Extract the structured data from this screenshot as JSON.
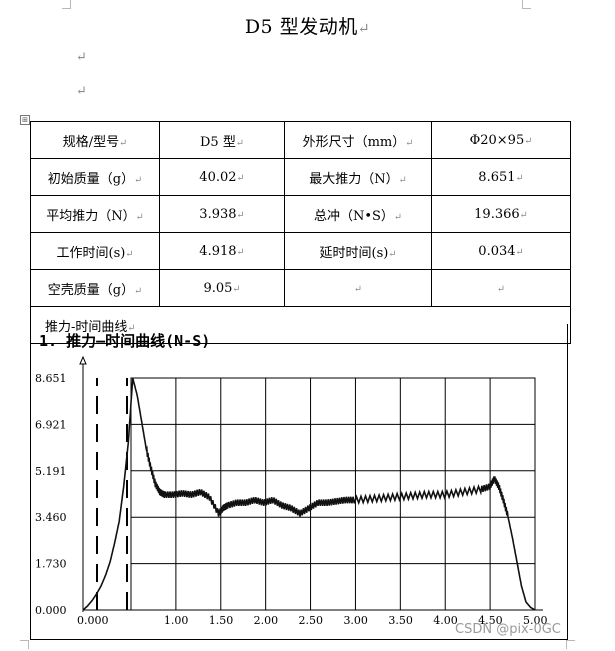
{
  "page_title": "D5 型发动机",
  "para_mark": "↵",
  "table_handle": "⊞",
  "spec_rows": [
    [
      "规格/型号",
      "D5 型",
      "外形尺寸（mm）",
      "Φ20×95"
    ],
    [
      "初始质量（g）",
      "40.02",
      "最大推力（N）",
      "8.651"
    ],
    [
      "平均推力（N）",
      "3.938",
      "总冲（N•S）",
      "19.366"
    ],
    [
      "工作时间(s)",
      "4.918",
      "延时时间(s)",
      "0.034"
    ],
    [
      "空壳质量（g）",
      "9.05",
      "",
      ""
    ]
  ],
  "curve_heading": "推力-时间曲线",
  "watermark": "CSDN @pix-0GC",
  "chart_data": {
    "type": "line",
    "title": "1. 推力—时间曲线(N-S)",
    "xlabel": "",
    "ylabel": "",
    "x_ticks": [
      "0.000",
      "1.00",
      "1.50",
      "2.00",
      "2.50",
      "3.00",
      "3.50",
      "4.00",
      "4.50",
      "5.00"
    ],
    "y_ticks": [
      "0.000",
      "1.730",
      "3.460",
      "5.191",
      "6.921",
      "8.651"
    ],
    "xlim": [
      0,
      5.0
    ],
    "ylim": [
      0,
      8.651
    ],
    "grid": true,
    "series": [
      {
        "name": "",
        "x": [
          0.0,
          0.05,
          0.1,
          0.15,
          0.2,
          0.25,
          0.3,
          0.35,
          0.4,
          0.45,
          0.5,
          0.55,
          0.6,
          0.65,
          0.7,
          0.75,
          0.8,
          0.85,
          0.9,
          1.0,
          1.1,
          1.2,
          1.3,
          1.4,
          1.5,
          1.55,
          1.6,
          1.7,
          1.8,
          1.9,
          2.0,
          2.1,
          2.2,
          2.3,
          2.4,
          2.5,
          2.6,
          2.7,
          2.8,
          2.9,
          3.0,
          3.2,
          3.4,
          3.6,
          3.8,
          4.0,
          4.2,
          4.4,
          4.5,
          4.55,
          4.6,
          4.65,
          4.7,
          4.75,
          4.8,
          4.85,
          4.9,
          4.95,
          5.0
        ],
        "values": [
          0.0,
          0.15,
          0.35,
          0.6,
          0.9,
          1.3,
          1.8,
          2.5,
          3.3,
          4.6,
          6.2,
          8.651,
          8.0,
          7.0,
          6.0,
          5.3,
          4.7,
          4.4,
          4.3,
          4.3,
          4.35,
          4.3,
          4.4,
          4.2,
          3.6,
          3.8,
          3.9,
          4.0,
          4.0,
          4.1,
          4.0,
          4.1,
          3.9,
          3.8,
          3.6,
          3.8,
          4.0,
          4.0,
          4.05,
          4.1,
          4.1,
          4.15,
          4.2,
          4.25,
          4.3,
          4.3,
          4.4,
          4.5,
          4.6,
          4.9,
          4.6,
          4.1,
          3.5,
          2.7,
          1.8,
          0.9,
          0.3,
          0.1,
          0.0
        ]
      }
    ]
  }
}
